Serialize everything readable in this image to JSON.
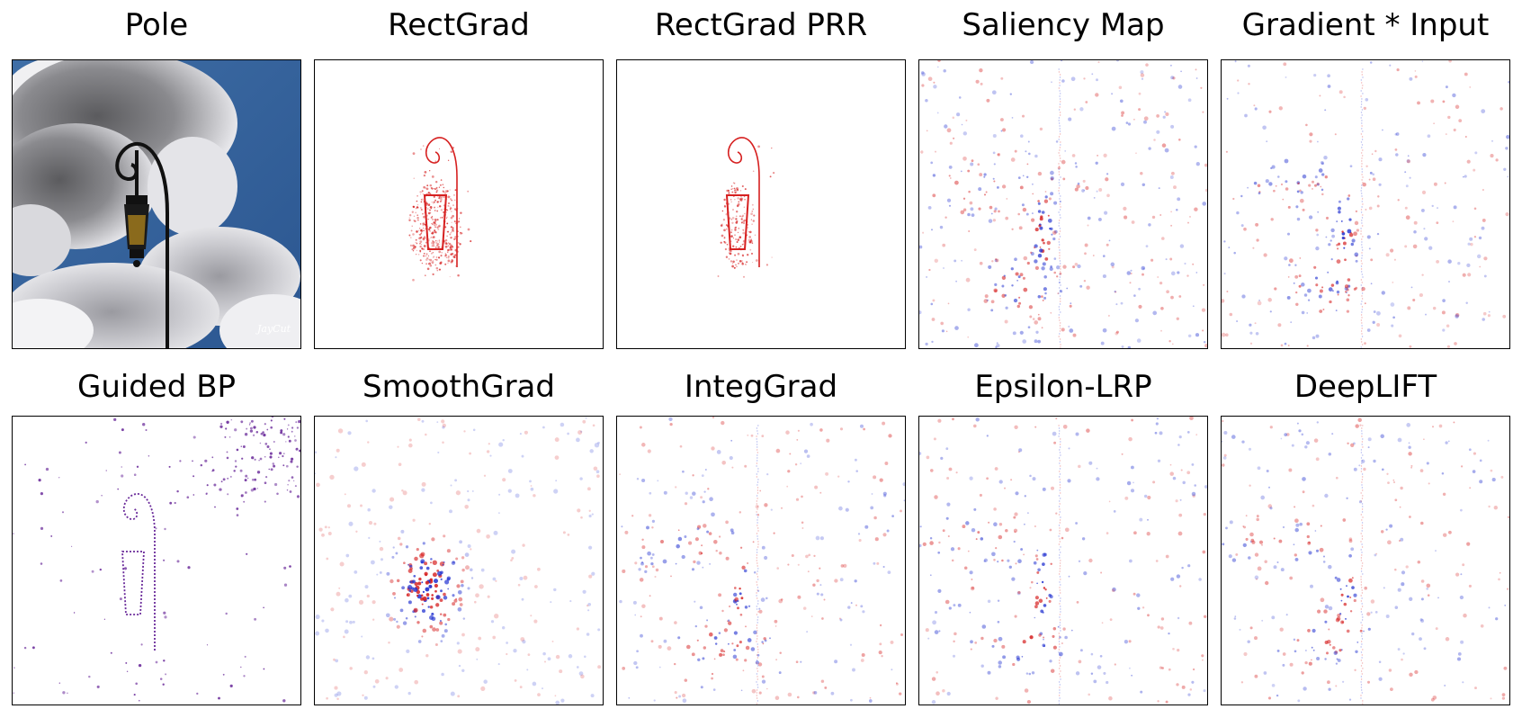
{
  "figure": {
    "colors": {
      "positive": "#d62020",
      "negative": "#2030d0",
      "guided": "#6a2a9a",
      "frame": "#000000"
    },
    "panels": [
      {
        "id": "pole",
        "title": "Pole",
        "kind": "photo",
        "watermark": "JayCut"
      },
      {
        "id": "rectgrad",
        "title": "RectGrad",
        "kind": "sparse"
      },
      {
        "id": "rectgrad-prr",
        "title": "RectGrad PRR",
        "kind": "sparse"
      },
      {
        "id": "saliency-map",
        "title": "Saliency Map",
        "kind": "noise"
      },
      {
        "id": "gradient-input",
        "title": "Gradient * Input",
        "kind": "noise"
      },
      {
        "id": "guided-bp",
        "title": "Guided BP",
        "kind": "guided"
      },
      {
        "id": "smoothgrad",
        "title": "SmoothGrad",
        "kind": "smooth"
      },
      {
        "id": "integgrad",
        "title": "IntegGrad",
        "kind": "noise"
      },
      {
        "id": "epsilon-lrp",
        "title": "Epsilon-LRP",
        "kind": "noise"
      },
      {
        "id": "deeplift",
        "title": "DeepLIFT",
        "kind": "noise"
      }
    ]
  }
}
